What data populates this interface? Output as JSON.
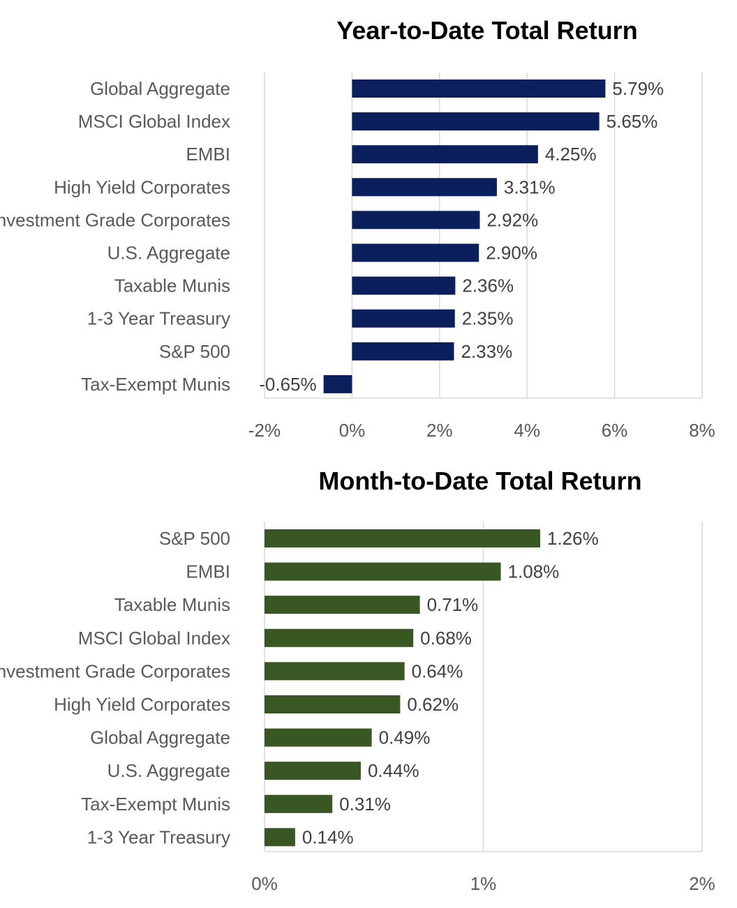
{
  "chart_data": [
    {
      "type": "bar",
      "orientation": "horizontal",
      "title": "Year-to-Date Total Return",
      "categories": [
        "Global Aggregate",
        "MSCI Global Index",
        "EMBI",
        "High Yield Corporates",
        "Investment Grade Corporates",
        "U.S. Aggregate",
        "Taxable Munis",
        "1-3 Year Treasury",
        "S&P 500",
        "Tax-Exempt Munis"
      ],
      "values": [
        5.79,
        5.65,
        4.25,
        3.31,
        2.92,
        2.9,
        2.36,
        2.35,
        2.33,
        -0.65
      ],
      "data_labels": [
        "5.79%",
        "5.65%",
        "4.25%",
        "3.31%",
        "2.92%",
        "2.90%",
        "2.36%",
        "2.35%",
        "2.33%",
        "-0.65%"
      ],
      "xlim": [
        -2,
        8
      ],
      "xticks": [
        -2,
        0,
        2,
        4,
        6,
        8
      ],
      "xtick_labels": [
        "-2%",
        "0%",
        "2%",
        "4%",
        "6%",
        "8%"
      ],
      "grid": true,
      "legend": "none",
      "color": "#0a1f5c"
    },
    {
      "type": "bar",
      "orientation": "horizontal",
      "title": "Month-to-Date Total Return",
      "categories": [
        "S&P 500",
        "EMBI",
        "Taxable Munis",
        "MSCI Global Index",
        "Investment Grade Corporates",
        "High Yield Corporates",
        "Global Aggregate",
        "U.S. Aggregate",
        "Tax-Exempt Munis",
        "1-3 Year Treasury"
      ],
      "values": [
        1.26,
        1.08,
        0.71,
        0.68,
        0.64,
        0.62,
        0.49,
        0.44,
        0.31,
        0.14
      ],
      "data_labels": [
        "1.26%",
        "1.08%",
        "0.71%",
        "0.68%",
        "0.64%",
        "0.62%",
        "0.49%",
        "0.44%",
        "0.31%",
        "0.14%"
      ],
      "xlim": [
        0,
        2
      ],
      "xticks": [
        0,
        1,
        2
      ],
      "xtick_labels": [
        "0%",
        "1%",
        "2%"
      ],
      "grid": true,
      "legend": "none",
      "color": "#385723"
    }
  ]
}
